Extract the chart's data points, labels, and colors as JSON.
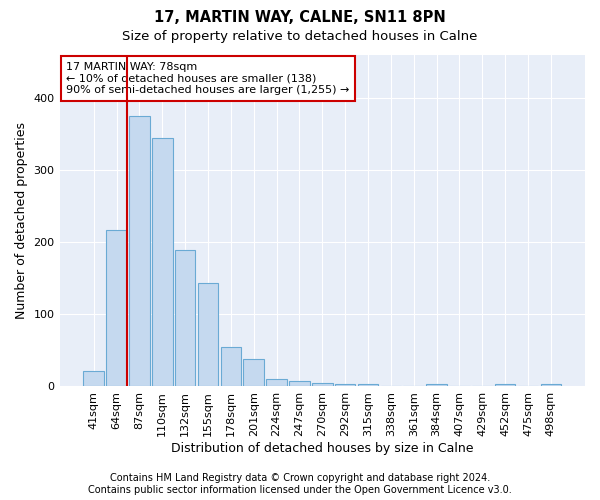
{
  "title": "17, MARTIN WAY, CALNE, SN11 8PN",
  "subtitle": "Size of property relative to detached houses in Calne",
  "xlabel": "Distribution of detached houses by size in Calne",
  "ylabel": "Number of detached properties",
  "footnote1": "Contains HM Land Registry data © Crown copyright and database right 2024.",
  "footnote2": "Contains public sector information licensed under the Open Government Licence v3.0.",
  "categories": [
    "41sqm",
    "64sqm",
    "87sqm",
    "110sqm",
    "132sqm",
    "155sqm",
    "178sqm",
    "201sqm",
    "224sqm",
    "247sqm",
    "270sqm",
    "292sqm",
    "315sqm",
    "338sqm",
    "361sqm",
    "384sqm",
    "407sqm",
    "429sqm",
    "452sqm",
    "475sqm",
    "498sqm"
  ],
  "values": [
    22,
    217,
    375,
    345,
    190,
    143,
    55,
    38,
    11,
    8,
    5,
    3,
    3,
    0,
    0,
    4,
    0,
    0,
    4,
    0,
    3
  ],
  "bar_color": "#c5d9ef",
  "bar_edgecolor": "#6aaad4",
  "vline_color": "#cc0000",
  "annotation_text": "17 MARTIN WAY: 78sqm\n← 10% of detached houses are smaller (138)\n90% of semi-detached houses are larger (1,255) →",
  "annotation_box_color": "#ffffff",
  "annotation_box_edgecolor": "#cc0000",
  "ylim": [
    0,
    460
  ],
  "background_color": "#e8eef8",
  "grid_color": "#ffffff",
  "figure_bg": "#ffffff",
  "title_fontsize": 10.5,
  "subtitle_fontsize": 9.5,
  "axis_label_fontsize": 9,
  "tick_fontsize": 8,
  "annotation_fontsize": 8,
  "footnote_fontsize": 7
}
